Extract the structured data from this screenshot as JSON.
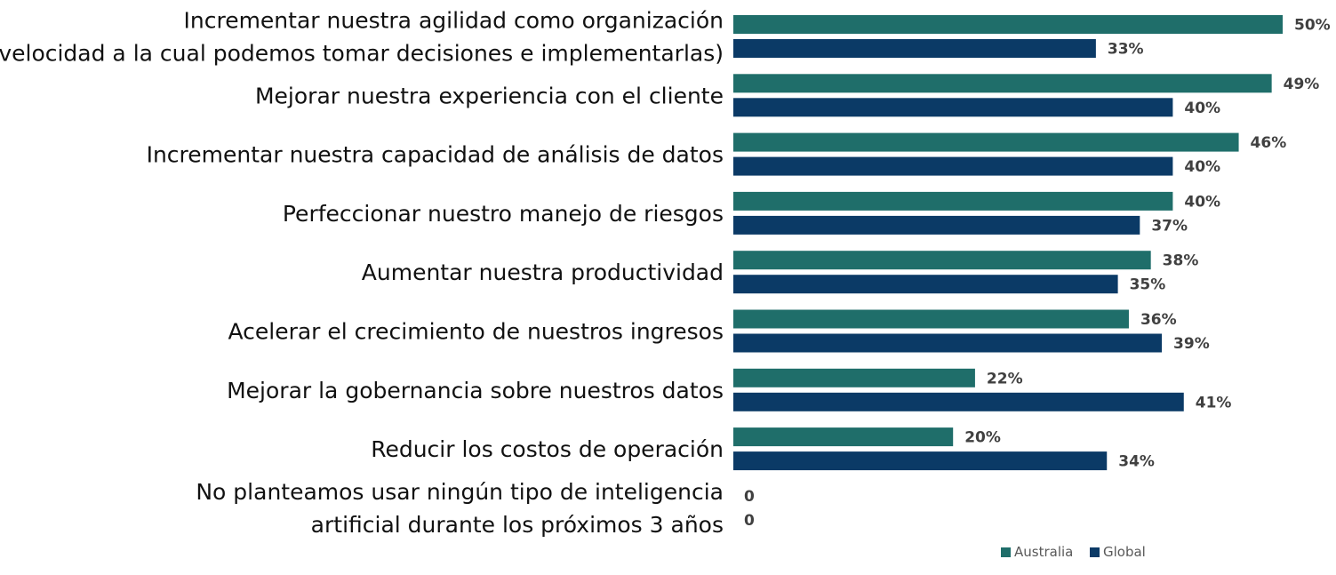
{
  "chart_data": {
    "type": "bar",
    "orientation": "horizontal",
    "categories": [
      [
        "Incrementar nuestra agilidad como organización",
        "(velocidad a la cual podemos tomar decisiones e implementarlas)"
      ],
      [
        "Mejorar nuestra experiencia con el cliente"
      ],
      [
        "Incrementar nuestra capacidad de análisis de datos"
      ],
      [
        "Perfeccionar nuestro manejo de riesgos"
      ],
      [
        "Aumentar nuestra productividad"
      ],
      [
        "Acelerar el crecimiento de nuestros ingresos"
      ],
      [
        "Mejorar la gobernancia sobre nuestros datos"
      ],
      [
        "Reducir los costos de operación"
      ],
      [
        "No planteamos usar ningún tipo de inteligencia",
        "artificial durante los próximos 3 años"
      ]
    ],
    "series": [
      {
        "name": "Australia",
        "color": "#1f6e6a",
        "values": [
          50,
          49,
          46,
          40,
          38,
          36,
          22,
          20,
          0
        ],
        "labels": [
          "50%",
          "49%",
          "46%",
          "40%",
          "38%",
          "36%",
          "22%",
          "20%",
          "0"
        ]
      },
      {
        "name": "Global",
        "color": "#0b3a66",
        "values": [
          33,
          40,
          40,
          37,
          35,
          39,
          41,
          34,
          0
        ],
        "labels": [
          "33%",
          "40%",
          "40%",
          "37%",
          "35%",
          "39%",
          "41%",
          "34%",
          "0"
        ]
      }
    ],
    "xlim": [
      0,
      50
    ],
    "legend_position": "bottom-right",
    "grid": false
  }
}
